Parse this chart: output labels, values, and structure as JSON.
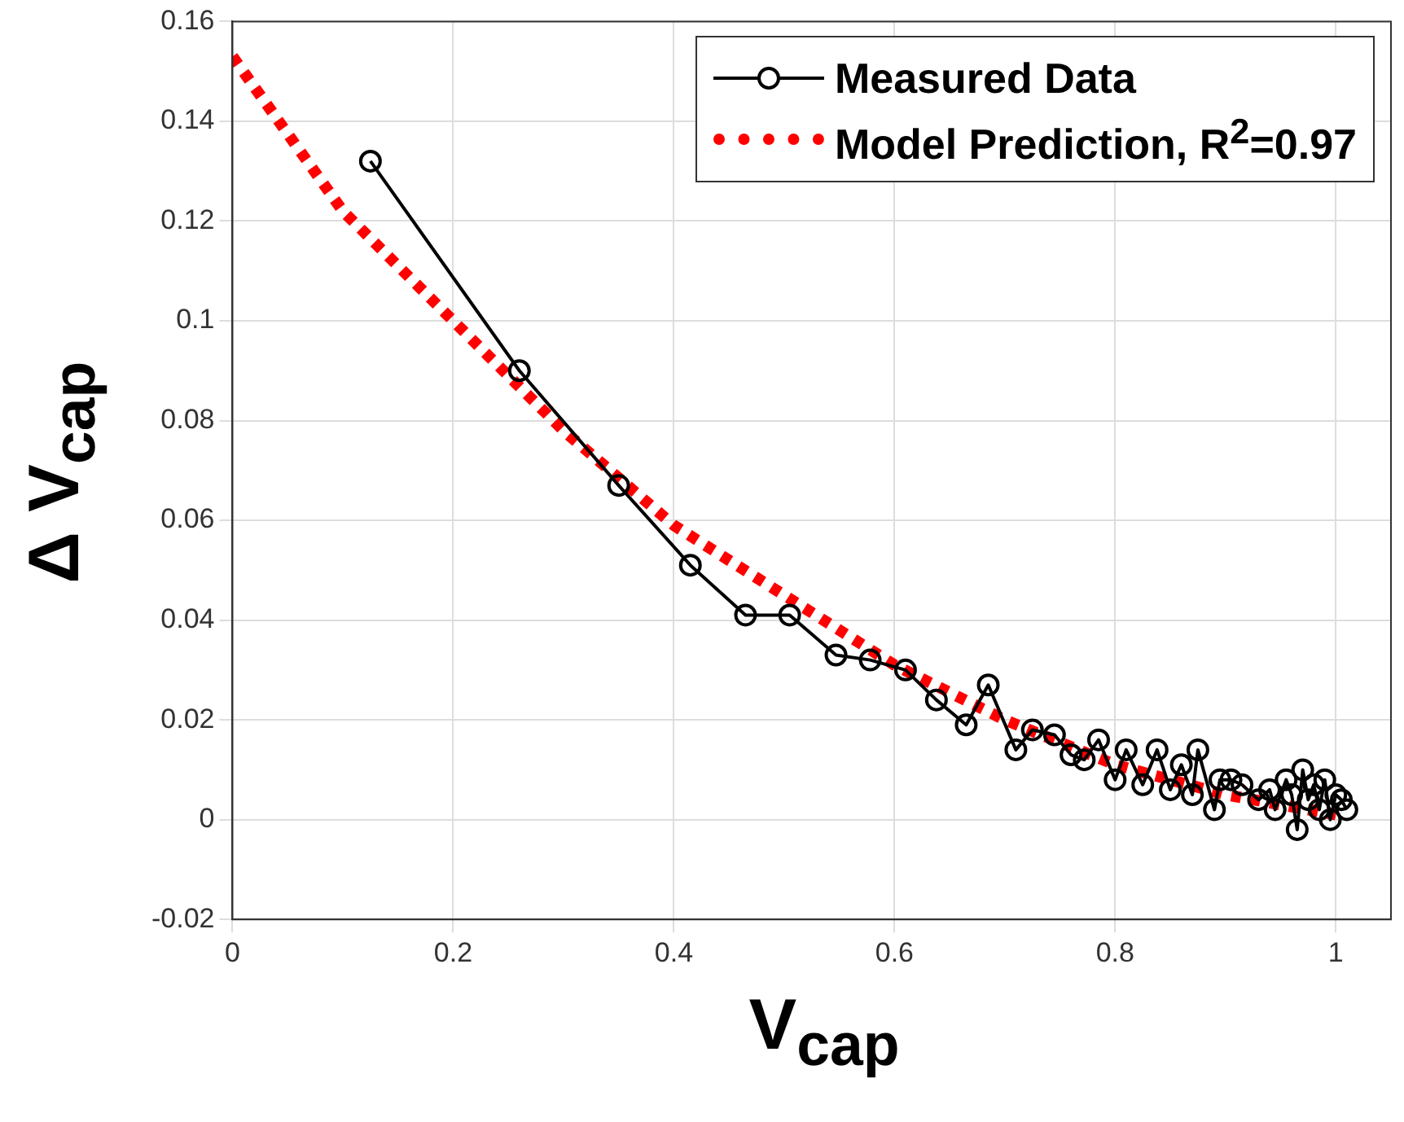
{
  "chart_data": {
    "type": "line",
    "xlabel": "V$_{cap}$",
    "ylabel": "Δ V$_{cap}$",
    "xlim": [
      0,
      1.05
    ],
    "xticks": [
      0,
      0.2,
      0.4,
      0.6,
      0.8,
      1
    ],
    "ylim": [
      -0.02,
      0.16
    ],
    "yticks": [
      -0.02,
      0,
      0.02,
      0.04,
      0.06,
      0.08,
      0.1,
      0.12,
      0.14,
      0.16
    ],
    "grid": true,
    "legend": "top right",
    "series": [
      {
        "name": "Measured Data",
        "color": "#000000",
        "marker": "circle",
        "line_style": "solid",
        "x": [
          0.125,
          0.26,
          0.35,
          0.415,
          0.465,
          0.505,
          0.547,
          0.578,
          0.61,
          0.638,
          0.665,
          0.685,
          0.71,
          0.725,
          0.745,
          0.76,
          0.772,
          0.785,
          0.8,
          0.81,
          0.825,
          0.838,
          0.85,
          0.86,
          0.87,
          0.875,
          0.89,
          0.895,
          0.905,
          0.915,
          0.93,
          0.94,
          0.945,
          0.955,
          0.96,
          0.965,
          0.97,
          0.975,
          0.98,
          0.985,
          0.99,
          0.995,
          1.0,
          1.005,
          1.01
        ],
        "values": [
          0.132,
          0.09,
          0.067,
          0.051,
          0.041,
          0.041,
          0.033,
          0.032,
          0.03,
          0.024,
          0.019,
          0.027,
          0.014,
          0.018,
          0.017,
          0.013,
          0.012,
          0.016,
          0.008,
          0.014,
          0.007,
          0.014,
          0.006,
          0.011,
          0.005,
          0.014,
          0.002,
          0.008,
          0.008,
          0.007,
          0.004,
          0.006,
          0.002,
          0.008,
          0.005,
          -0.002,
          0.01,
          0.004,
          0.007,
          0.002,
          0.008,
          0,
          0.005,
          0.004,
          0.002
        ]
      },
      {
        "name": "Model Prediction, R$^{2}$=0.97",
        "color": "#ff0000",
        "marker": "none",
        "line_style": "dotted",
        "x": [
          0,
          0.1,
          0.2,
          0.3,
          0.4,
          0.5,
          0.6,
          0.7,
          0.8,
          0.9,
          1.0
        ],
        "values": [
          0.153,
          0.122,
          0.1,
          0.078,
          0.059,
          0.045,
          0.031,
          0.02,
          0.011,
          0.005,
          0.001
        ]
      }
    ]
  }
}
